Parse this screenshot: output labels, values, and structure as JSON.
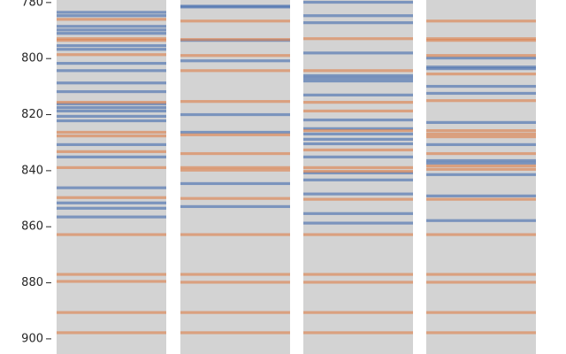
{
  "chart_data": {
    "type": "strip",
    "ylim": [
      779.1,
      905.4
    ],
    "invert_y": true,
    "yticks": [
      780,
      800,
      820,
      840,
      860,
      880,
      900
    ],
    "background": "#d3d3d3",
    "panels": [
      {
        "series": [
          {
            "color": "#4c72b0",
            "values": [
              783.5,
              784.7,
              788.5,
              789.8,
              791.0,
              795.4,
              796.7,
              801.7,
              804.3,
              808.7,
              811.8,
              816.2,
              817.5,
              818.7,
              820.6,
              822.2,
              830.7,
              835.1,
              846.1,
              851.5,
              853.4,
              856.5
            ]
          },
          {
            "color": "#dd8452",
            "values": [
              786.0,
              792.9,
              793.5,
              798.6,
              815.6,
              826.3,
              827.6,
              833.2,
              838.9,
              849.6,
              862.8,
              877.0,
              879.5,
              890.6,
              897.8
            ]
          }
        ]
      },
      {
        "series": [
          {
            "color": "#4c72b0",
            "values": [
              781.3,
              781.6,
              793.5,
              800.8,
              820.0,
              826.3,
              844.6,
              852.8
            ]
          },
          {
            "color": "#dd8452",
            "values": [
              786.6,
              793.2,
              798.9,
              804.3,
              815.3,
              827.2,
              833.9,
              838.9,
              839.8,
              849.9,
              862.8,
              877.0,
              879.8,
              890.6,
              897.8
            ]
          }
        ]
      },
      {
        "series": [
          {
            "color": "#4c72b0",
            "values": [
              779.9,
              784.7,
              787.2,
              798.0,
              806.1,
              807.0,
              808.0,
              813.0,
              821.9,
              825.0,
              826.9,
              828.8,
              830.4,
              835.1,
              840.8,
              843.3,
              848.3,
              855.3,
              858.7
            ]
          },
          {
            "color": "#dd8452",
            "values": [
              792.9,
              804.3,
              815.6,
              818.7,
              825.7,
              832.6,
              838.9,
              840.2,
              850.2,
              862.8,
              877.0,
              879.8,
              890.6,
              897.8
            ]
          }
        ]
      },
      {
        "series": [
          {
            "color": "#4c72b0",
            "values": [
              799.8,
              803.0,
              803.6,
              809.9,
              812.4,
              822.8,
              830.7,
              836.4,
              837.3,
              841.4,
              849.0,
              857.8
            ]
          },
          {
            "color": "#dd8452",
            "values": [
              786.6,
              792.9,
              793.5,
              798.9,
              805.5,
              815.0,
              825.7,
              826.9,
              827.9,
              833.9,
              838.3,
              839.5,
              850.2,
              862.8,
              877.0,
              879.8,
              890.6,
              897.8
            ]
          }
        ]
      }
    ]
  }
}
